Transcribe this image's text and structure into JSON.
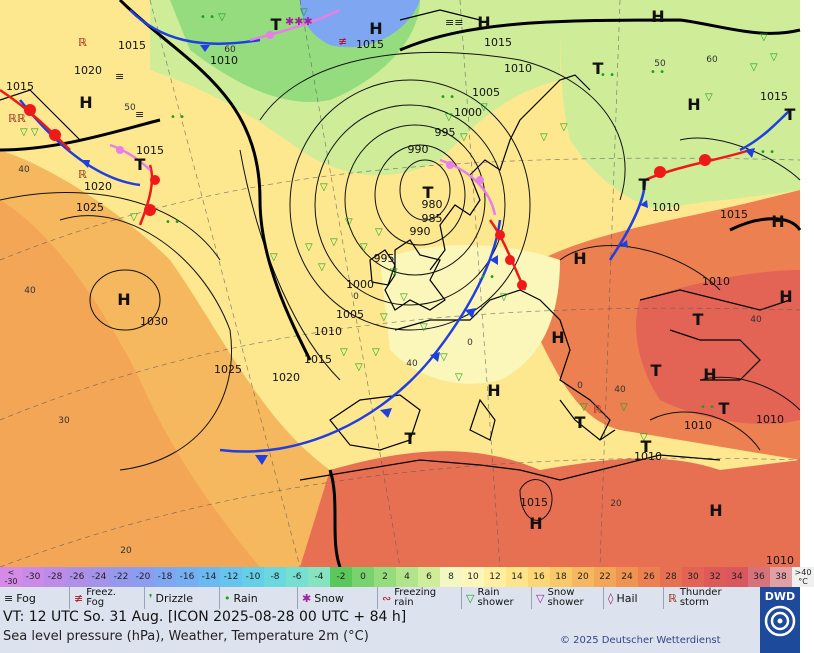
{
  "map": {
    "isobars": [
      "1015",
      "1010",
      "1015",
      "1015",
      "1020",
      "1015",
      "1020",
      "1025",
      "1015",
      "1010",
      "1005",
      "1000",
      "995",
      "990",
      "980",
      "985",
      "990",
      "995",
      "1000",
      "1005",
      "1010",
      "1015",
      "1020",
      "1025",
      "1030",
      "1010",
      "1015",
      "1010",
      "1010",
      "1010",
      "1015",
      "1010",
      "1010",
      "1015",
      "1010"
    ],
    "pressure_centers": {
      "high": "H",
      "low": "T"
    },
    "temperature_marks": [
      "60",
      "60",
      "50",
      "40",
      "40",
      "30",
      "20",
      "0",
      "0",
      "0",
      "20",
      "40",
      "50",
      "40",
      "40"
    ],
    "colors": {
      "warm_front": "#ee1a1a",
      "cold_front": "#1f3fe0",
      "occlusion": "#e87ee8",
      "isobar": "#111111",
      "rain": "#1aa01a",
      "drizzle": "#1aa01a"
    }
  },
  "scale": {
    "first_label": "<\n-30",
    "values": [
      "-30",
      "-28",
      "-26",
      "-24",
      "-22",
      "-20",
      "-18",
      "-16",
      "-14",
      "-12",
      "-10",
      "-8",
      "-6",
      "-4",
      "-2",
      "0",
      "2",
      "4",
      "6",
      "8",
      "10",
      "12",
      "14",
      "16",
      "18",
      "20",
      "22",
      "24",
      "26",
      "28",
      "30",
      "32",
      "34",
      "36",
      "38"
    ],
    "last_label": ">40\n°C",
    "colors": [
      "#d58ae8",
      "#c98ae8",
      "#bd8ce8",
      "#b08fe8",
      "#a394ea",
      "#9599ec",
      "#8a9def",
      "#7ea6f1",
      "#75aff2",
      "#6cb9f2",
      "#66c4ef",
      "#66cfe8",
      "#6ad8de",
      "#75dfd0",
      "#85e4bf",
      "#5ac75a",
      "#78d36f",
      "#95dc7e",
      "#b2e48b",
      "#cfec98",
      "#f2f7c3",
      "#fbf6b9",
      "#fff0a0",
      "#fde68a",
      "#fbd875",
      "#f9c868",
      "#f6b85e",
      "#f3a656",
      "#ef9350",
      "#ec8050",
      "#e87052",
      "#e36354",
      "#dd5a58",
      "#d8585e",
      "#d8727a",
      "#e0a0a4"
    ]
  },
  "legend_items": [
    {
      "name": "fog",
      "icon": "≡",
      "label": "Fog"
    },
    {
      "name": "freezing-fog",
      "icon": "≢",
      "label": "Freez.\nFog"
    },
    {
      "name": "drizzle",
      "icon": "❜",
      "label": "Drizzle"
    },
    {
      "name": "rain",
      "icon": "•",
      "label": "Rain"
    },
    {
      "name": "snow",
      "icon": "✱",
      "label": "Snow"
    },
    {
      "name": "freezing-rain",
      "icon": "∾",
      "label": "Freezing\nrain"
    },
    {
      "name": "rain-shower",
      "icon": "▽",
      "label": "Rain\nshower"
    },
    {
      "name": "snow-shower",
      "icon": "▽",
      "label": "Snow\nshower"
    },
    {
      "name": "hail",
      "icon": "◊",
      "label": "Hail"
    },
    {
      "name": "thunderstorm",
      "icon": "ℝ",
      "label": "Thunder\nstorm"
    }
  ],
  "info": {
    "valid_time": "VT: 12 UTC So.  31 Aug. [ICON 2025-08-28  00 UTC + 84 h]",
    "subtitle": "Sea level pressure (hPa), Weather, Temperature 2m (°C)",
    "copyright": "© 2025 Deutscher Wetterdienst",
    "logo_text": "DWD"
  }
}
